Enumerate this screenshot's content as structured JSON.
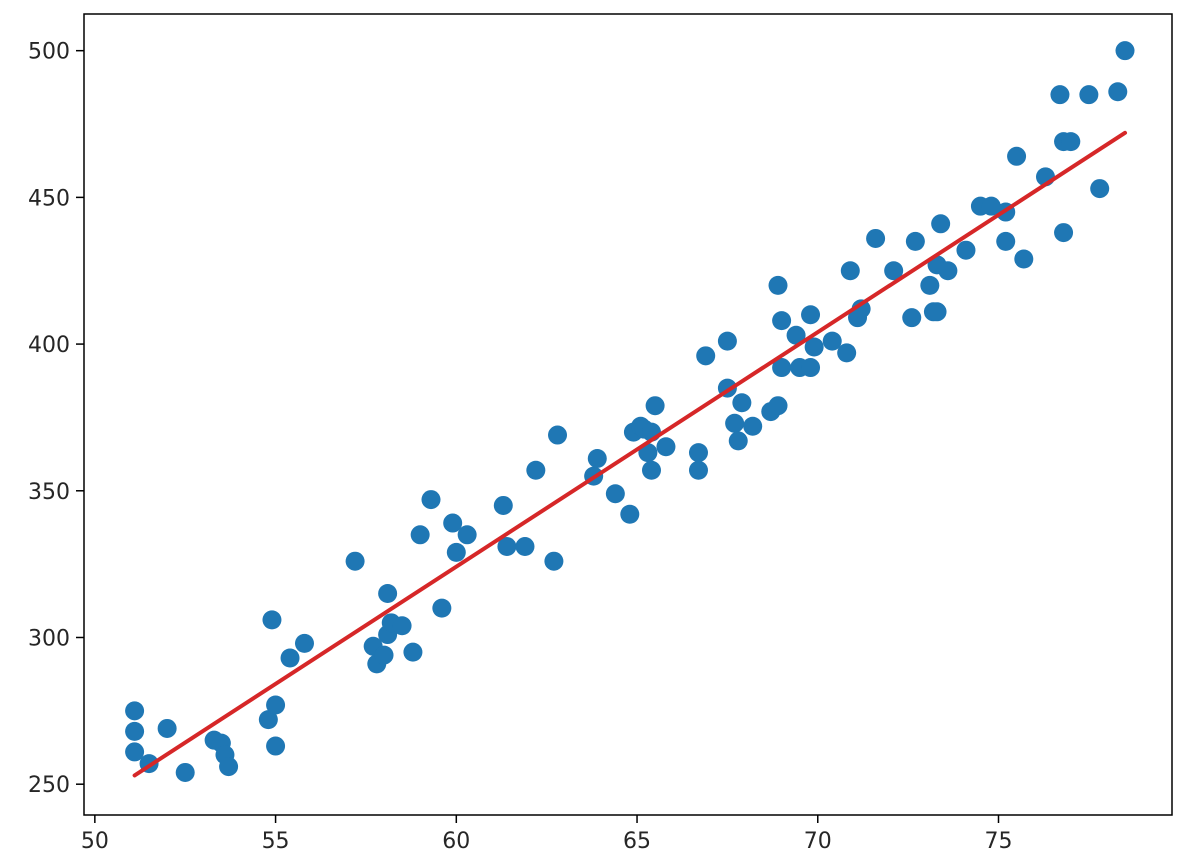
{
  "chart_data": {
    "type": "scatter",
    "title": "",
    "xlabel": "",
    "ylabel": "",
    "xlim": [
      49.7,
      79.8
    ],
    "ylim": [
      239.5,
      512.5
    ],
    "xticks": [
      50,
      55,
      60,
      65,
      70,
      75
    ],
    "yticks": [
      250,
      300,
      350,
      400,
      450,
      500
    ],
    "xtick_labels": [
      "50",
      "55",
      "60",
      "65",
      "70",
      "75"
    ],
    "ytick_labels": [
      "250",
      "300",
      "350",
      "400",
      "450",
      "500"
    ],
    "grid": false,
    "legend": "none",
    "colors": {
      "points": "#1f77b4",
      "fit_line": "#d62728",
      "axes": "#000000",
      "text": "#262626"
    },
    "series": [
      {
        "type": "scatter",
        "x": [
          51.1,
          51.1,
          51.1,
          51.5,
          52.0,
          52.5,
          53.3,
          53.5,
          53.6,
          53.7,
          54.8,
          54.9,
          55.0,
          55.0,
          55.4,
          55.8,
          57.2,
          57.7,
          57.8,
          58.0,
          58.1,
          58.1,
          58.2,
          58.5,
          58.8,
          59.0,
          59.3,
          59.6,
          59.9,
          60.0,
          60.3,
          61.3,
          61.4,
          61.9,
          62.2,
          62.7,
          62.8,
          63.8,
          63.9,
          64.4,
          64.8,
          64.9,
          65.1,
          65.2,
          65.3,
          65.4,
          65.4,
          65.5,
          65.8,
          66.7,
          66.7,
          66.9,
          67.5,
          67.5,
          67.7,
          67.8,
          67.9,
          68.2,
          68.7,
          68.9,
          68.9,
          69.0,
          69.0,
          69.4,
          69.5,
          69.8,
          69.8,
          69.9,
          70.4,
          70.8,
          70.9,
          71.1,
          71.2,
          71.6,
          72.1,
          72.6,
          72.7,
          73.1,
          73.2,
          73.3,
          73.3,
          73.4,
          73.6,
          74.1,
          74.5,
          74.8,
          75.2,
          75.2,
          75.5,
          75.7,
          76.3,
          76.7,
          76.8,
          76.8,
          77.0,
          77.5,
          77.8,
          78.3,
          78.5
        ],
        "y": [
          275,
          268,
          261,
          257,
          269,
          254,
          265,
          264,
          260,
          256,
          272,
          306,
          277,
          263,
          293,
          298,
          326,
          297,
          291,
          294,
          315,
          301,
          305,
          304,
          295,
          335,
          347,
          310,
          339,
          329,
          335,
          345,
          331,
          331,
          357,
          326,
          369,
          355,
          361,
          349,
          342,
          370,
          372,
          371,
          363,
          370,
          357,
          379,
          365,
          363,
          357,
          396,
          385,
          401,
          373,
          367,
          380,
          372,
          377,
          420,
          379,
          408,
          392,
          403,
          392,
          410,
          392,
          399,
          401,
          397,
          425,
          409,
          412,
          436,
          425,
          409,
          435,
          420,
          411,
          411,
          427,
          441,
          425,
          432,
          447,
          447,
          435,
          445,
          464,
          429,
          457,
          485,
          469,
          438,
          469,
          485,
          453,
          486,
          500
        ]
      },
      {
        "type": "line",
        "x": [
          51.1,
          78.5
        ],
        "y": [
          253,
          472
        ]
      }
    ]
  }
}
